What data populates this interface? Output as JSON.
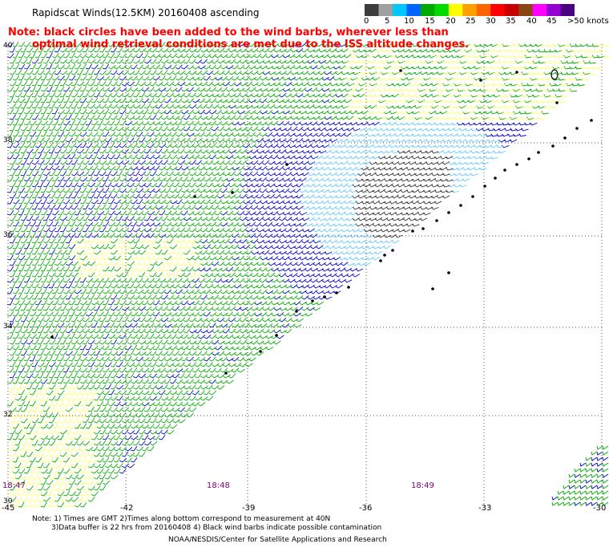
{
  "title": "Rapidscat Winds(12.5KM) 20160408 ascending",
  "note_line1": "Note: black circles have been added to the wind barbs, wherever less than",
  "note_line2": "optimal wind retrieval conditions are met due to the ISS altitude changes.",
  "colorbar": {
    "labels": [
      "0",
      "5",
      "10",
      "15",
      "20",
      "25",
      "30",
      "35",
      "40",
      "45",
      ">50 knots"
    ],
    "colors": [
      "#3c3c3c",
      "#a0a0a0",
      "#00c8ff",
      "#0064ff",
      "#00aa00",
      "#00dc00",
      "#ffff00",
      "#ffa000",
      "#ff6400",
      "#ff0000",
      "#c80000",
      "#8b4513",
      "#ff00ff",
      "#9400d3",
      "#4b0082"
    ]
  },
  "latitudes": [
    "40",
    "38",
    "36",
    "34",
    "32",
    "30"
  ],
  "longitudes": [
    "-45",
    "-42",
    "-39",
    "-36",
    "-33",
    "-30"
  ],
  "times": [
    "18:47",
    "18:48",
    "18:49"
  ],
  "footnote_line1": "Note: 1) Times are GMT 2)Times along bottom correspond to measurement at 40N",
  "footnote_line2": "3)Data buffer is 22 hrs from 20160408 4) Black wind barbs indicate possible contamination",
  "credit": "NOAA/NESDIS/Center for Satellite Applications and Research",
  "barb_colors": {
    "calm": "#333333",
    "light": "#66ccff",
    "moderate": "#0000cc",
    "fresh": "#00aa00",
    "strong": "#ffff66"
  }
}
